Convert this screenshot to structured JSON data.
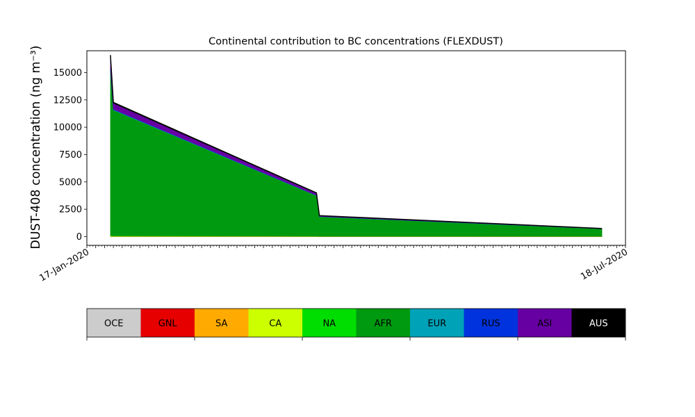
{
  "chart_data": {
    "type": "area",
    "title": "Continental contribution to BC concentrations (FLEXDUST)",
    "ylabel": "DUST-408 concentration (ng m⁻³)",
    "xlabel": "",
    "xlim": [
      "2020-01-17",
      "2020-07-18"
    ],
    "ylim": [
      -800,
      17000
    ],
    "yticks": [
      0,
      2500,
      5000,
      7500,
      10000,
      12500,
      15000
    ],
    "ytick_labels": [
      "0",
      "2500",
      "5000",
      "7500",
      "10000",
      "12500",
      "15000"
    ],
    "xtick_labels_legible": [
      "17-Jan-2020",
      "18-Jul-2020"
    ],
    "stacked": true,
    "grid": false,
    "x": [
      "2020-01-25",
      "2020-01-26",
      "2020-04-04",
      "2020-04-05",
      "2020-07-10"
    ],
    "series": [
      {
        "name": "OCE",
        "color": "#cccccc",
        "values": [
          0,
          0,
          0,
          0,
          0
        ]
      },
      {
        "name": "GNL",
        "color": "#e60000",
        "values": [
          0,
          0,
          0,
          0,
          0
        ]
      },
      {
        "name": "SA",
        "color": "#ffaa00",
        "values": [
          20,
          15,
          10,
          5,
          5
        ]
      },
      {
        "name": "CA",
        "color": "#ccff00",
        "values": [
          30,
          20,
          10,
          5,
          5
        ]
      },
      {
        "name": "NA",
        "color": "#00dd00",
        "values": [
          50,
          30,
          20,
          10,
          5
        ]
      },
      {
        "name": "AFR",
        "color": "#009a10",
        "values": [
          15200,
          11500,
          3700,
          1800,
          690
        ]
      },
      {
        "name": "EUR",
        "color": "#00a2b8",
        "values": [
          50,
          40,
          20,
          10,
          5
        ]
      },
      {
        "name": "RUS",
        "color": "#0033dd",
        "values": [
          50,
          40,
          20,
          10,
          5
        ]
      },
      {
        "name": "ASI",
        "color": "#6600a3",
        "values": [
          1000,
          550,
          180,
          60,
          20
        ]
      },
      {
        "name": "AUS",
        "color": "#000000",
        "values": [
          200,
          85,
          40,
          20,
          10
        ]
      }
    ]
  }
}
